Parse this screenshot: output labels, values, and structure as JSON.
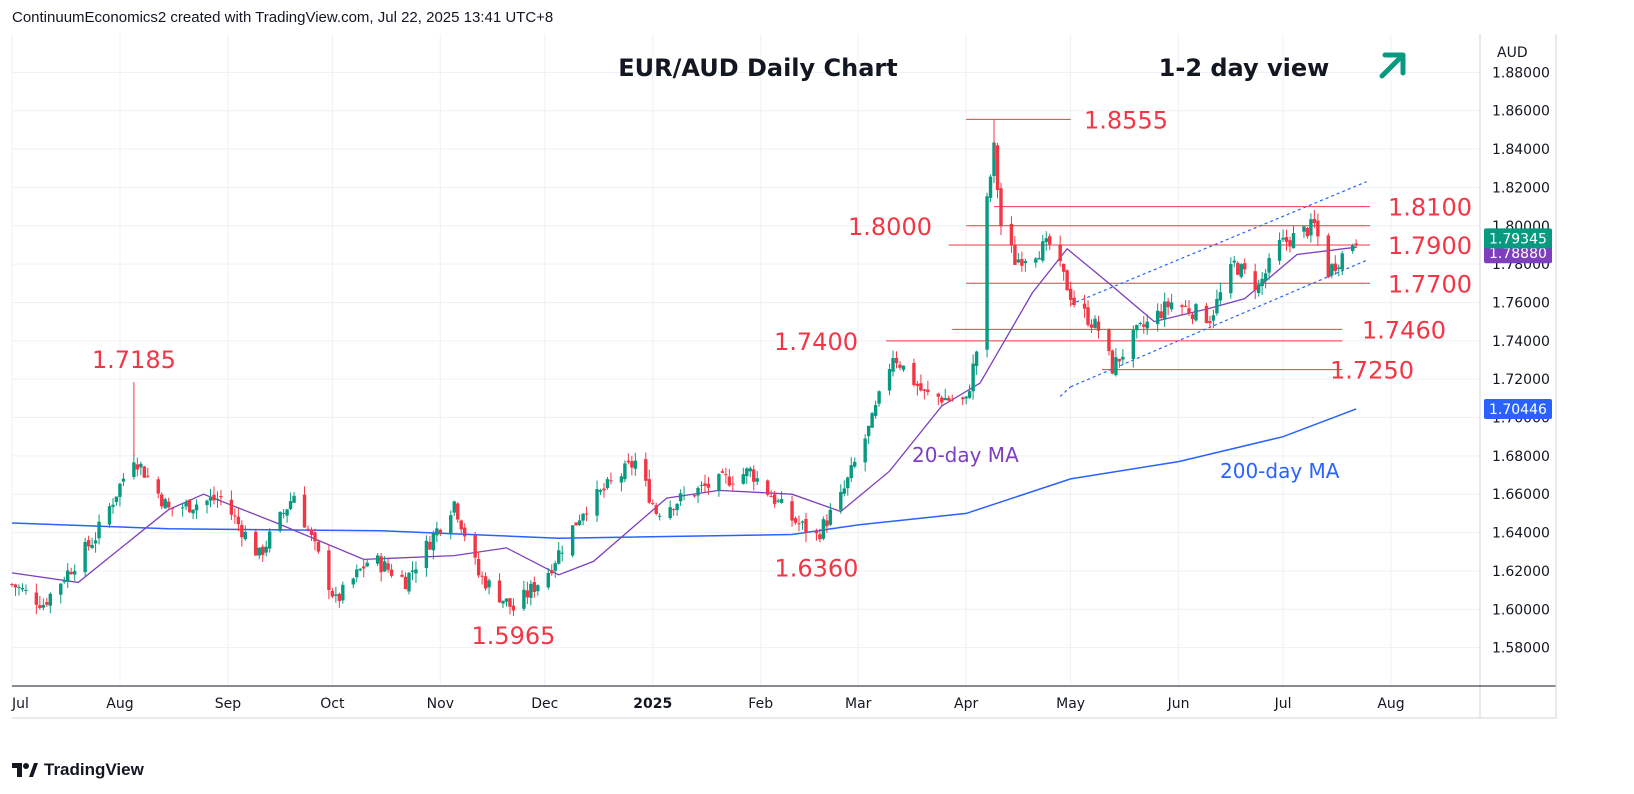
{
  "header": {
    "text": "ContinuumEconomics2 created with TradingView.com, Jul 22, 2025 13:41 UTC+8"
  },
  "footer": {
    "brand": "TradingView"
  },
  "chart_data": {
    "type": "candlestick",
    "title": "EUR/AUD Daily Chart",
    "subtitle": "1-2 day view",
    "outlook_icon": "arrow-up-right-icon",
    "currency": "AUD",
    "ylim": [
      1.56,
      1.9
    ],
    "y_ticks": [
      "1.88000",
      "1.86000",
      "1.84000",
      "1.82000",
      "1.80000",
      "1.78000",
      "1.76000",
      "1.74000",
      "1.72000",
      "1.70000",
      "1.68000",
      "1.66000",
      "1.64000",
      "1.62000",
      "1.60000",
      "1.58000"
    ],
    "x_ticks": [
      "Jul",
      "Aug",
      "Sep",
      "Oct",
      "Nov",
      "Dec",
      "2025",
      "Feb",
      "Mar",
      "Apr",
      "May",
      "Jun",
      "Jul",
      "Aug"
    ],
    "last_price": "1.79345",
    "ma20_value": "1.78880",
    "ma200_value": "1.70446",
    "colors": {
      "up": "#089981",
      "down": "#f23645",
      "ma20": "#7e3fbf",
      "ma200": "#2962ff",
      "levels": "#f23645",
      "arrow": "#089981"
    },
    "ma_labels": {
      "ma20": "20-day MA",
      "ma200": "200-day MA"
    },
    "levels": [
      {
        "label": "1.8555",
        "value": 1.8555
      },
      {
        "label": "1.8100",
        "value": 1.81
      },
      {
        "label": "1.8000",
        "value": 1.8
      },
      {
        "label": "1.7900",
        "value": 1.79
      },
      {
        "label": "1.7700",
        "value": 1.77
      },
      {
        "label": "1.7460",
        "value": 1.746
      },
      {
        "label": "1.7400",
        "value": 1.74
      },
      {
        "label": "1.7250",
        "value": 1.725
      }
    ],
    "point_labels": [
      {
        "label": "1.7185",
        "date": "2024-08-05",
        "value": 1.7185
      },
      {
        "label": "1.5965",
        "date": "2024-11-22",
        "value": 1.5965
      },
      {
        "label": "1.6360",
        "date": "2025-02-17",
        "value": 1.636
      }
    ],
    "channel": {
      "upper": [
        [
          "2025-05-01",
          1.759
        ],
        [
          "2025-07-25",
          1.823
        ]
      ],
      "lower": [
        [
          "2025-05-01",
          1.716
        ],
        [
          "2025-07-25",
          1.782
        ]
      ]
    },
    "series_anchors": [
      [
        "2024-07-01",
        1.613
      ],
      [
        "2024-07-10",
        1.603
      ],
      [
        "2024-07-25",
        1.638
      ],
      [
        "2024-08-05",
        1.68
      ],
      [
        "2024-08-15",
        1.652
      ],
      [
        "2024-08-30",
        1.658
      ],
      [
        "2024-09-10",
        1.628
      ],
      [
        "2024-09-20",
        1.66
      ],
      [
        "2024-10-02",
        1.604
      ],
      [
        "2024-10-12",
        1.627
      ],
      [
        "2024-10-22",
        1.615
      ],
      [
        "2024-11-05",
        1.656
      ],
      [
        "2024-11-12",
        1.618
      ],
      [
        "2024-11-22",
        1.6
      ],
      [
        "2024-12-02",
        1.62
      ],
      [
        "2024-12-12",
        1.652
      ],
      [
        "2024-12-27",
        1.677
      ],
      [
        "2025-01-02",
        1.651
      ],
      [
        "2025-01-15",
        1.663
      ],
      [
        "2025-01-29",
        1.672
      ],
      [
        "2025-02-10",
        1.647
      ],
      [
        "2025-02-17",
        1.638
      ],
      [
        "2025-02-24",
        1.658
      ],
      [
        "2025-03-05",
        1.698
      ],
      [
        "2025-03-11",
        1.733
      ],
      [
        "2025-03-20",
        1.712
      ],
      [
        "2025-04-01",
        1.708
      ],
      [
        "2025-04-04",
        1.735
      ],
      [
        "2025-04-07",
        1.812
      ],
      [
        "2025-04-09",
        1.84
      ],
      [
        "2025-04-11",
        1.8
      ],
      [
        "2025-04-15",
        1.782
      ],
      [
        "2025-04-25",
        1.79
      ],
      [
        "2025-05-02",
        1.76
      ],
      [
        "2025-05-09",
        1.746
      ],
      [
        "2025-05-13",
        1.726
      ],
      [
        "2025-05-20",
        1.744
      ],
      [
        "2025-05-30",
        1.76
      ],
      [
        "2025-06-10",
        1.752
      ],
      [
        "2025-06-17",
        1.78
      ],
      [
        "2025-06-24",
        1.768
      ],
      [
        "2025-06-30",
        1.79
      ],
      [
        "2025-07-10",
        1.8
      ],
      [
        "2025-07-14",
        1.776
      ],
      [
        "2025-07-22",
        1.7935
      ]
    ],
    "ma20_anchors": [
      [
        "2024-07-01",
        1.619
      ],
      [
        "2024-07-20",
        1.614
      ],
      [
        "2024-08-15",
        1.652
      ],
      [
        "2024-08-25",
        1.66
      ],
      [
        "2024-09-15",
        1.645
      ],
      [
        "2024-10-10",
        1.626
      ],
      [
        "2024-11-05",
        1.628
      ],
      [
        "2024-11-20",
        1.632
      ],
      [
        "2024-12-05",
        1.618
      ],
      [
        "2024-12-15",
        1.625
      ],
      [
        "2025-01-05",
        1.658
      ],
      [
        "2025-01-20",
        1.662
      ],
      [
        "2025-02-10",
        1.66
      ],
      [
        "2025-02-24",
        1.651
      ],
      [
        "2025-03-10",
        1.672
      ],
      [
        "2025-03-25",
        1.706
      ],
      [
        "2025-04-05",
        1.718
      ],
      [
        "2025-04-20",
        1.765
      ],
      [
        "2025-04-30",
        1.788
      ],
      [
        "2025-05-12",
        1.77
      ],
      [
        "2025-05-25",
        1.75
      ],
      [
        "2025-06-10",
        1.757
      ],
      [
        "2025-06-20",
        1.762
      ],
      [
        "2025-07-05",
        1.785
      ],
      [
        "2025-07-22",
        1.7888
      ]
    ],
    "ma200_anchors": [
      [
        "2024-07-01",
        1.645
      ],
      [
        "2024-08-15",
        1.642
      ],
      [
        "2024-10-15",
        1.641
      ],
      [
        "2024-12-05",
        1.637
      ],
      [
        "2025-02-10",
        1.639
      ],
      [
        "2025-03-01",
        1.644
      ],
      [
        "2025-04-01",
        1.65
      ],
      [
        "2025-05-01",
        1.668
      ],
      [
        "2025-06-01",
        1.677
      ],
      [
        "2025-07-01",
        1.69
      ],
      [
        "2025-07-22",
        1.7045
      ]
    ]
  }
}
